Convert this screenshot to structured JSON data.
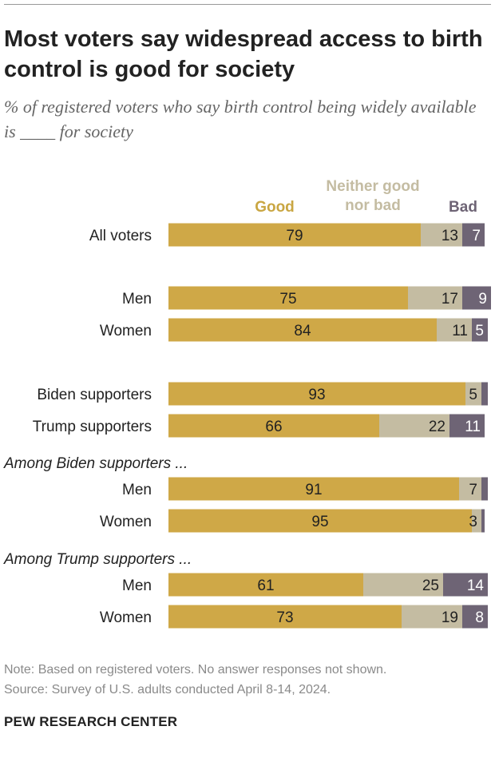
{
  "title": "Most voters say widespread access to birth control is good for society",
  "subtitle": "% of registered voters who say birth control being widely available is ____ for society",
  "legend": {
    "good": "Good",
    "neither_line1": "Neither good",
    "neither_line2": "nor bad",
    "bad": "Bad"
  },
  "colors": {
    "good": "#cfa847",
    "neither": "#c4bca2",
    "bad": "#6e6475",
    "text_dark": "#222222",
    "text_light": "#ffffff"
  },
  "chart_data": {
    "type": "bar",
    "orientation": "horizontal",
    "stacked": true,
    "categories": [
      "All voters",
      "Men",
      "Women",
      "Biden supporters",
      "Trump supporters",
      "Men",
      "Women",
      "Men",
      "Women"
    ],
    "groups": [
      {
        "label": "",
        "rows": [
          0
        ]
      },
      {
        "label": "",
        "rows": [
          1,
          2
        ]
      },
      {
        "label": "",
        "rows": [
          3,
          4
        ]
      },
      {
        "label": "Among Biden supporters ...",
        "rows": [
          5,
          6
        ]
      },
      {
        "label": "Among Trump supporters ...",
        "rows": [
          7,
          8
        ]
      }
    ],
    "series": [
      {
        "name": "Good",
        "values": [
          79,
          75,
          84,
          93,
          66,
          91,
          95,
          61,
          73
        ]
      },
      {
        "name": "Neither good nor bad",
        "values": [
          13,
          17,
          11,
          5,
          22,
          7,
          3,
          25,
          19
        ]
      },
      {
        "name": "Bad",
        "values": [
          7,
          9,
          5,
          2,
          11,
          2,
          1,
          14,
          8
        ]
      }
    ],
    "labels_shown": [
      [
        "79",
        "13",
        "7"
      ],
      [
        "75",
        "17",
        "9"
      ],
      [
        "84",
        "11",
        "5"
      ],
      [
        "93",
        "5",
        ""
      ],
      [
        "66",
        "22",
        "11"
      ],
      [
        "91",
        "7",
        ""
      ],
      [
        "95",
        "3",
        ""
      ],
      [
        "61",
        "25",
        "14"
      ],
      [
        "73",
        "19",
        "8"
      ]
    ],
    "xlim": [
      0,
      100
    ]
  },
  "note": "Note: Based on registered voters. No answer responses not shown.",
  "source": "Source: Survey of U.S. adults conducted April 8-14, 2024.",
  "brand": "PEW RESEARCH CENTER"
}
